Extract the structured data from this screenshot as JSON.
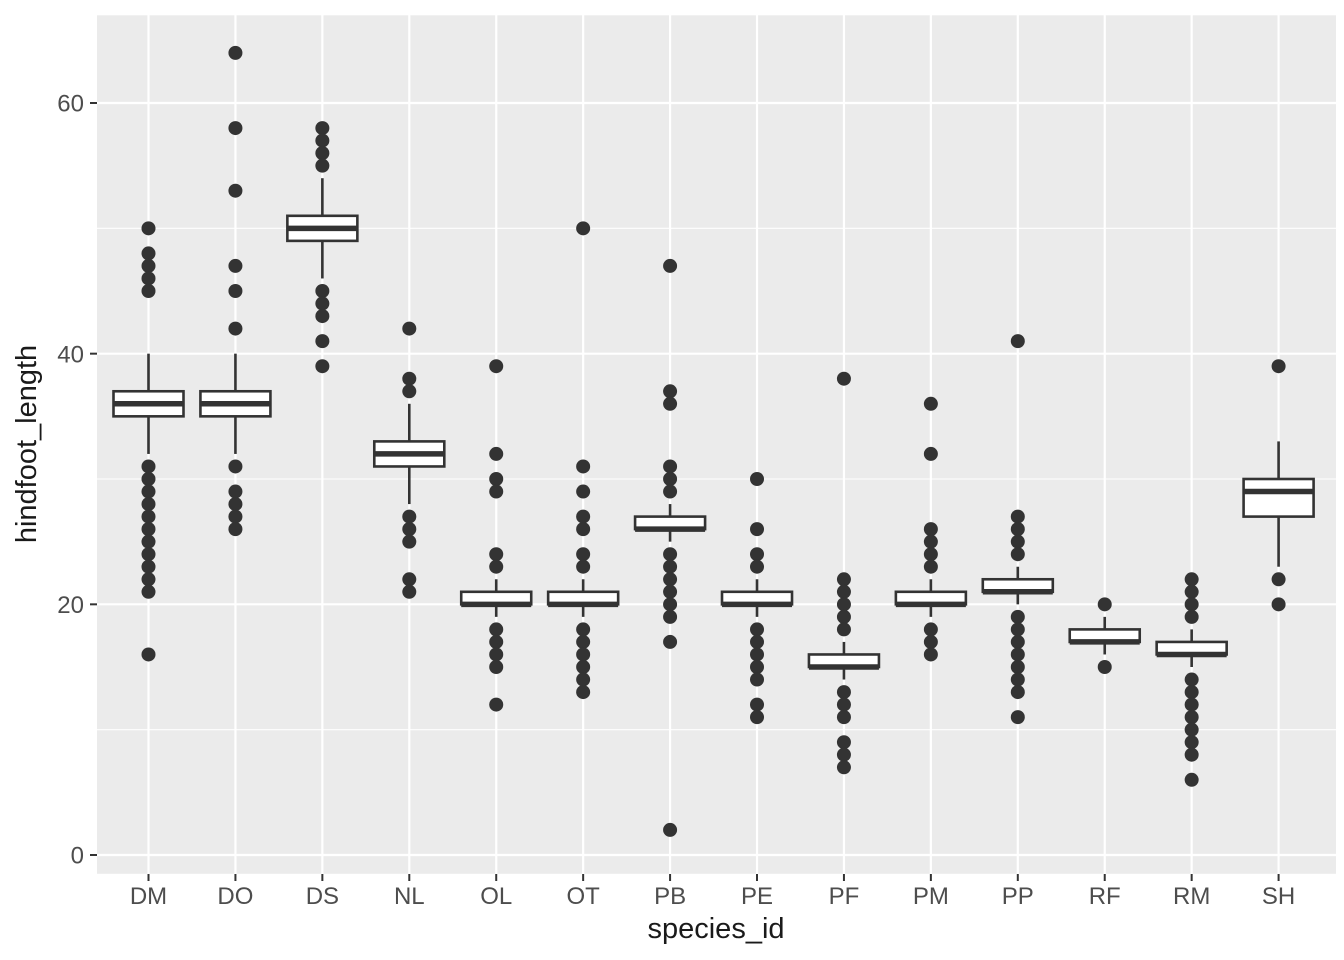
{
  "chart_data": {
    "type": "boxplot",
    "title": "",
    "xlabel": "species_id",
    "ylabel": "hindfoot_length",
    "y_major_ticks": [
      0,
      20,
      40,
      60
    ],
    "y_minor_gridlines": [
      10,
      30,
      50
    ],
    "ylim": [
      -1.5,
      67
    ],
    "grid": true,
    "legend": "none",
    "panel_background": "#EBEBEB",
    "gridline_color": "#FFFFFF",
    "box_fill": "#FFFFFF",
    "line_color": "#333333",
    "point_color": "#333333",
    "tick_color": "#333333",
    "axis_text_color": "#4D4D4D",
    "axis_title_color": "#1A1A1A",
    "categories": [
      "DM",
      "DO",
      "DS",
      "NL",
      "OL",
      "OT",
      "PB",
      "PE",
      "PF",
      "PM",
      "PP",
      "RF",
      "RM",
      "SH"
    ],
    "series": [
      {
        "species": "DM",
        "q1": 35,
        "median": 36,
        "q3": 37,
        "whisker_low": 32,
        "whisker_high": 40,
        "outliers": [
          50,
          48,
          47,
          46,
          45,
          31,
          30,
          29,
          28,
          27,
          26,
          25,
          24,
          23,
          22,
          21,
          16
        ]
      },
      {
        "species": "DO",
        "q1": 35,
        "median": 36,
        "q3": 37,
        "whisker_low": 32,
        "whisker_high": 40,
        "outliers": [
          64,
          58,
          53,
          47,
          45,
          42,
          31,
          29,
          28,
          27,
          26
        ]
      },
      {
        "species": "DS",
        "q1": 49,
        "median": 50,
        "q3": 51,
        "whisker_low": 46,
        "whisker_high": 54,
        "outliers": [
          58,
          57,
          56,
          55,
          45,
          44,
          43,
          41,
          39
        ]
      },
      {
        "species": "NL",
        "q1": 31,
        "median": 32,
        "q3": 33,
        "whisker_low": 28,
        "whisker_high": 36,
        "outliers": [
          42,
          38,
          37,
          27,
          26,
          25,
          22,
          21
        ]
      },
      {
        "species": "OL",
        "q1": 20,
        "median": 20,
        "q3": 21,
        "whisker_low": 19,
        "whisker_high": 22,
        "outliers": [
          39,
          32,
          30,
          29,
          24,
          23,
          18,
          17,
          16,
          15,
          12
        ]
      },
      {
        "species": "OT",
        "q1": 20,
        "median": 20,
        "q3": 21,
        "whisker_low": 19,
        "whisker_high": 22,
        "outliers": [
          50,
          31,
          29,
          27,
          26,
          24,
          23,
          18,
          17,
          16,
          15,
          14,
          13
        ]
      },
      {
        "species": "PB",
        "q1": 26,
        "median": 26,
        "q3": 27,
        "whisker_low": 25,
        "whisker_high": 28,
        "outliers": [
          47,
          37,
          36,
          31,
          30,
          29,
          24,
          23,
          22,
          21,
          20,
          19,
          17,
          2
        ]
      },
      {
        "species": "PE",
        "q1": 20,
        "median": 20,
        "q3": 21,
        "whisker_low": 19,
        "whisker_high": 22,
        "outliers": [
          30,
          26,
          24,
          23,
          18,
          17,
          16,
          15,
          14,
          12,
          11
        ]
      },
      {
        "species": "PF",
        "q1": 15,
        "median": 15,
        "q3": 16,
        "whisker_low": 14,
        "whisker_high": 17,
        "outliers": [
          38,
          22,
          21,
          20,
          19,
          18,
          13,
          12,
          11,
          9,
          8,
          7
        ]
      },
      {
        "species": "PM",
        "q1": 20,
        "median": 20,
        "q3": 21,
        "whisker_low": 19,
        "whisker_high": 22,
        "outliers": [
          36,
          32,
          26,
          25,
          24,
          23,
          18,
          17,
          16
        ]
      },
      {
        "species": "PP",
        "q1": 21,
        "median": 21,
        "q3": 22,
        "whisker_low": 20,
        "whisker_high": 23,
        "outliers": [
          41,
          27,
          26,
          25,
          24,
          19,
          18,
          17,
          16,
          15,
          14,
          13,
          11
        ]
      },
      {
        "species": "RF",
        "q1": 17,
        "median": 17,
        "q3": 18,
        "whisker_low": 16,
        "whisker_high": 19,
        "outliers": [
          20,
          15
        ]
      },
      {
        "species": "RM",
        "q1": 16,
        "median": 16,
        "q3": 17,
        "whisker_low": 15,
        "whisker_high": 18,
        "outliers": [
          22,
          21,
          20,
          19,
          14,
          13,
          12,
          11,
          10,
          9,
          8,
          6
        ]
      },
      {
        "species": "SH",
        "q1": 27,
        "median": 29,
        "q3": 30,
        "whisker_low": 23,
        "whisker_high": 33,
        "outliers": [
          39,
          22,
          20
        ]
      }
    ]
  }
}
